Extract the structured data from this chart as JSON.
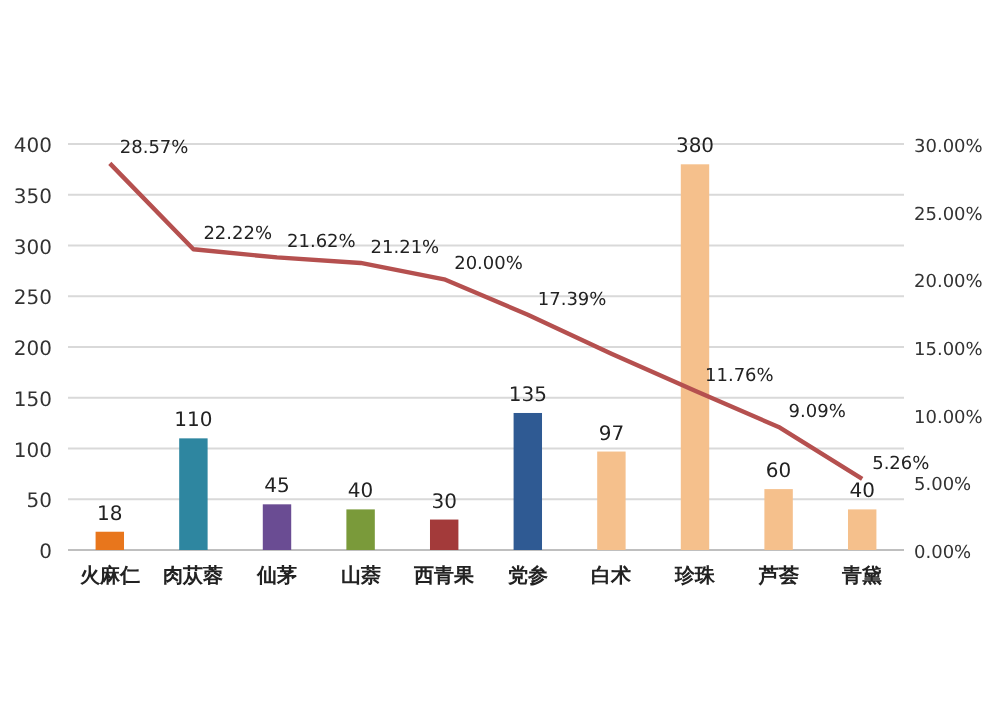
{
  "chart_data": {
    "type": "bar",
    "categories": [
      "火麻仁",
      "肉苁蓉",
      "仙茅",
      "山萘",
      "西青果",
      "党参",
      "白术",
      "珍珠",
      "芦荟",
      "青黛"
    ],
    "series": [
      {
        "colors": [
          "#e8761c",
          "#2e86a0",
          "#6a4c93",
          "#7a9a3a",
          "#a33a3a",
          "#2f5a93",
          "#f5c08c",
          "#f5c08c",
          "#f5c08c",
          "#f5c08c"
        ],
        "values": [
          18,
          110,
          45,
          40,
          30,
          135,
          97,
          380,
          60,
          40
        ],
        "data_labels": true
      },
      {
        "type": "line",
        "axis": "y2",
        "color": "#b5504f",
        "values": [
          28.57,
          22.22,
          21.62,
          21.21,
          20.0,
          17.39,
          14.5,
          11.76,
          9.09,
          5.26
        ],
        "value_labels": [
          "28.57%",
          "22.22%",
          "21.62%",
          "21.21%",
          "20.00%",
          "17.39%",
          null,
          "11.76%",
          "9.09%",
          "5.26%"
        ]
      }
    ],
    "ylim": [
      0,
      400
    ],
    "yticks": [
      0,
      50,
      100,
      150,
      200,
      250,
      300,
      350,
      400
    ],
    "y2lim": [
      0,
      30
    ],
    "y2ticks": [
      {
        "value": 0,
        "label": "0.00%"
      },
      {
        "value": 5,
        "label": "5.00%"
      },
      {
        "value": 10,
        "label": "10.00%"
      },
      {
        "value": 15,
        "label": "15.00%"
      },
      {
        "value": 20,
        "label": "20.00%"
      },
      {
        "value": 25,
        "label": "25.00%"
      },
      {
        "value": 30,
        "label": "30.00%"
      }
    ],
    "grid": "y"
  }
}
